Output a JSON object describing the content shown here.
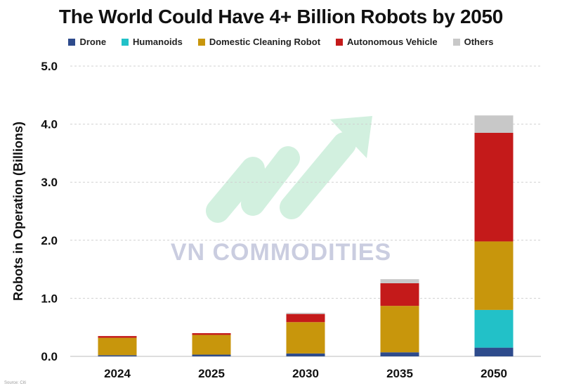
{
  "title": "The World Could Have 4+ Billion Robots by 2050",
  "watermark": "VN COMMODITIES",
  "source": "Source: Citi",
  "chart_data": {
    "type": "bar",
    "stacked": true,
    "categories": [
      "2024",
      "2025",
      "2030",
      "2035",
      "2050"
    ],
    "ylabel": "Robots in Operation (Billions)",
    "xlabel": "",
    "ylim": [
      0,
      5
    ],
    "yticks": [
      "0.0",
      "1.0",
      "2.0",
      "3.0",
      "4.0",
      "5.0"
    ],
    "grid": "horizontal dashed",
    "legend_position": "top",
    "series": [
      {
        "name": "Drone",
        "color": "#2e4b8c",
        "values": [
          0.02,
          0.03,
          0.05,
          0.07,
          0.15
        ]
      },
      {
        "name": "Humanoids",
        "color": "#22c1c8",
        "values": [
          0.0,
          0.0,
          0.0,
          0.0,
          0.65
        ]
      },
      {
        "name": "Domestic Cleaning Robot",
        "color": "#c8960c",
        "values": [
          0.3,
          0.34,
          0.54,
          0.8,
          1.18
        ]
      },
      {
        "name": "Autonomous Vehicle",
        "color": "#c41a1a",
        "values": [
          0.03,
          0.03,
          0.14,
          0.39,
          1.87
        ]
      },
      {
        "name": "Others",
        "color": "#c8c8c8",
        "values": [
          0.0,
          0.0,
          0.02,
          0.07,
          0.3
        ]
      }
    ]
  }
}
